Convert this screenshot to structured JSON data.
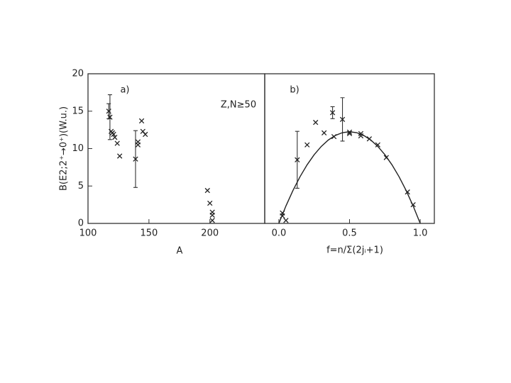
{
  "chart_data": [
    {
      "type": "scatter",
      "ylabel": "B(E2;2⁺→0⁺)(W.u.)",
      "xlabel": "A",
      "annotations": [
        "a)",
        "Z,N≥50"
      ],
      "x": [
        117,
        118,
        119,
        120,
        121,
        122,
        124,
        126,
        139,
        141,
        141,
        144,
        145,
        147,
        198,
        200,
        202,
        202,
        202
      ],
      "values": [
        15.0,
        14.2,
        12.3,
        12.1,
        11.9,
        11.5,
        10.7,
        9.0,
        8.6,
        10.5,
        10.9,
        13.7,
        12.3,
        11.9,
        4.4,
        2.7,
        1.5,
        1.1,
        0.4
      ],
      "errors": [
        1.0,
        3.0,
        null,
        null,
        null,
        null,
        null,
        null,
        3.8,
        null,
        null,
        null,
        null,
        null,
        null,
        null,
        null,
        null,
        null
      ],
      "xlim": [
        100,
        245
      ],
      "xticks": [
        100,
        150,
        200
      ],
      "ylim": [
        0,
        20
      ],
      "yticks": [
        0,
        5,
        10,
        15,
        20
      ]
    },
    {
      "type": "scatter",
      "xlabel": "f=n/Σ(2jᵢ+1)",
      "annotations": [
        "b)"
      ],
      "x": [
        0.025,
        0.025,
        0.05,
        0.13,
        0.2,
        0.26,
        0.32,
        0.38,
        0.39,
        0.45,
        0.5,
        0.5,
        0.58,
        0.58,
        0.64,
        0.7,
        0.76,
        0.91,
        0.95
      ],
      "values": [
        1.4,
        1.0,
        0.4,
        8.5,
        10.5,
        13.5,
        12.1,
        14.8,
        11.6,
        13.9,
        12.2,
        12.0,
        12.0,
        11.7,
        11.3,
        10.5,
        8.8,
        4.2,
        2.5
      ],
      "errors": [
        null,
        null,
        null,
        3.8,
        null,
        null,
        null,
        0.8,
        null,
        2.9,
        null,
        null,
        null,
        null,
        null,
        null,
        null,
        null,
        null
      ],
      "curve": {
        "x": [
          0,
          0.05,
          0.1,
          0.15,
          0.2,
          0.25,
          0.3,
          0.35,
          0.4,
          0.45,
          0.5,
          0.55,
          0.6,
          0.65,
          0.7,
          0.75,
          0.8,
          0.85,
          0.9,
          0.95,
          1.0
        ],
        "values": [
          0,
          2.33,
          4.41,
          6.25,
          7.84,
          9.19,
          10.29,
          11.15,
          11.76,
          12.13,
          12.25,
          12.13,
          11.76,
          11.15,
          10.29,
          9.19,
          7.84,
          6.25,
          4.41,
          2.33,
          0
        ]
      },
      "xlim": [
        -0.1,
        1.1
      ],
      "xticks": [
        {
          "value": 0,
          "label": "0.0"
        },
        {
          "value": 0.5,
          "label": "0.5"
        },
        {
          "value": 1,
          "label": "1.0"
        }
      ],
      "ylim": [
        0,
        20
      ]
    }
  ]
}
